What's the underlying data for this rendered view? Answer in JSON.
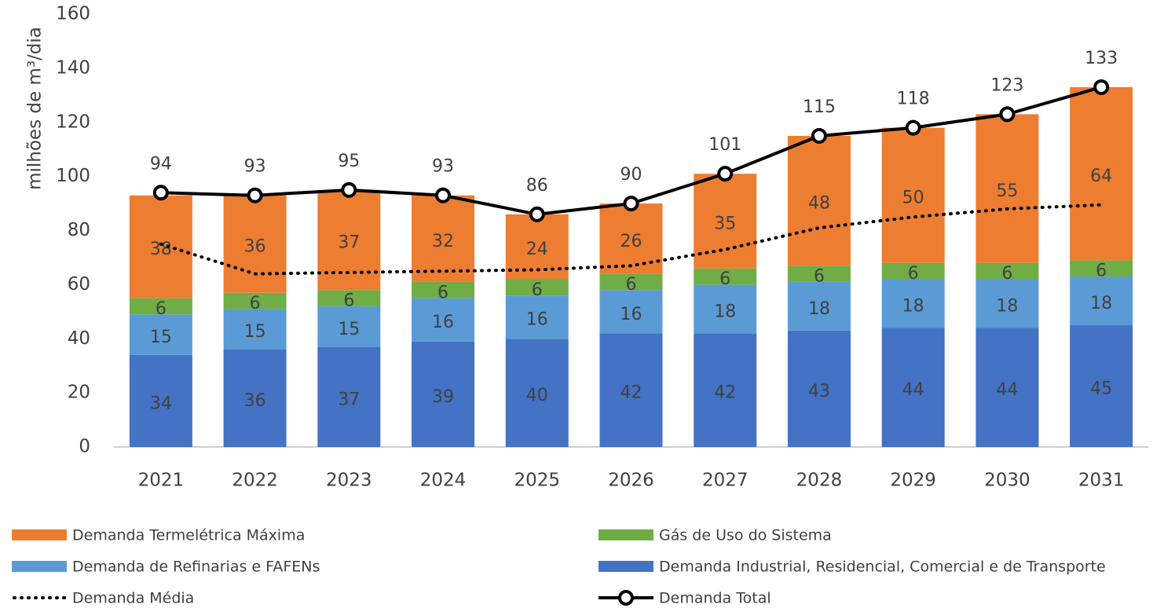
{
  "chart_data": {
    "type": "bar",
    "y_label": "milhões de m³/dia",
    "categories": [
      "2021",
      "2022",
      "2023",
      "2024",
      "2025",
      "2026",
      "2027",
      "2028",
      "2029",
      "2030",
      "2031"
    ],
    "ylim": [
      0,
      160
    ],
    "yticks": [
      0,
      20,
      40,
      60,
      80,
      100,
      120,
      140,
      160
    ],
    "stacked": true,
    "series": [
      {
        "name": "Demanda Termelétrica Máxima",
        "type": "bar",
        "color": "#ed7d31",
        "values": [
          38,
          36,
          37,
          32,
          24,
          26,
          35,
          48,
          50,
          55,
          64
        ]
      },
      {
        "name": "Gás de Uso do Sistema",
        "type": "bar",
        "color": "#70ad47",
        "values": [
          6,
          6,
          6,
          6,
          6,
          6,
          6,
          6,
          6,
          6,
          6
        ]
      },
      {
        "name": "Demanda de Refinarias e FAFENs",
        "type": "bar",
        "color": "#5b9bd5",
        "values": [
          15,
          15,
          15,
          16,
          16,
          16,
          18,
          18,
          18,
          18,
          18
        ]
      },
      {
        "name": "Demanda Industrial, Residencial, Comercial e de Transporte",
        "type": "bar",
        "color": "#4472c4",
        "values": [
          34,
          36,
          37,
          39,
          40,
          42,
          42,
          43,
          44,
          44,
          45
        ]
      },
      {
        "name": "Demanda Média",
        "type": "line",
        "style": "dotted",
        "color": "#000000",
        "values": [
          75,
          64,
          64.5,
          65,
          65.5,
          67,
          73,
          81,
          85,
          88,
          89.5
        ]
      },
      {
        "name": "Demanda Total",
        "type": "line",
        "style": "markers",
        "color": "#000000",
        "values": [
          94,
          93,
          95,
          93,
          86,
          90,
          101,
          115,
          118,
          123,
          133
        ]
      }
    ]
  }
}
